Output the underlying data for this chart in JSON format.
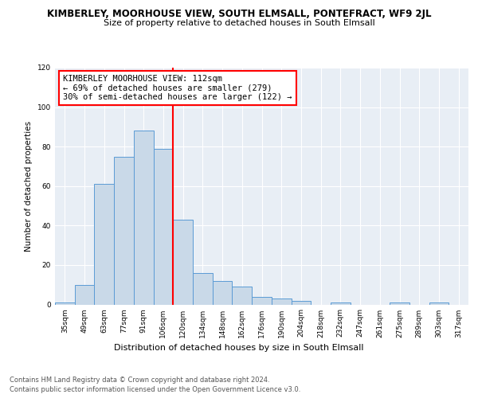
{
  "title1": "KIMBERLEY, MOORHOUSE VIEW, SOUTH ELMSALL, PONTEFRACT, WF9 2JL",
  "title2": "Size of property relative to detached houses in South Elmsall",
  "xlabel": "Distribution of detached houses by size in South Elmsall",
  "ylabel": "Number of detached properties",
  "bar_labels": [
    "35sqm",
    "49sqm",
    "63sqm",
    "77sqm",
    "91sqm",
    "106sqm",
    "120sqm",
    "134sqm",
    "148sqm",
    "162sqm",
    "176sqm",
    "190sqm",
    "204sqm",
    "218sqm",
    "232sqm",
    "247sqm",
    "261sqm",
    "275sqm",
    "289sqm",
    "303sqm",
    "317sqm"
  ],
  "bar_values": [
    1,
    10,
    61,
    75,
    88,
    79,
    43,
    16,
    12,
    9,
    4,
    3,
    2,
    0,
    1,
    0,
    0,
    1,
    0,
    1,
    0
  ],
  "bar_color": "#c9d9e8",
  "bar_edge_color": "#5b9bd5",
  "vline_color": "red",
  "annotation_title": "KIMBERLEY MOORHOUSE VIEW: 112sqm",
  "annotation_line1": "← 69% of detached houses are smaller (279)",
  "annotation_line2": "30% of semi-detached houses are larger (122) →",
  "annotation_box_color": "white",
  "annotation_box_edge_color": "red",
  "ylim": [
    0,
    120
  ],
  "yticks": [
    0,
    20,
    40,
    60,
    80,
    100,
    120
  ],
  "footer1": "Contains HM Land Registry data © Crown copyright and database right 2024.",
  "footer2": "Contains public sector information licensed under the Open Government Licence v3.0.",
  "bg_color": "#e8eef5",
  "fig_bg_color": "#ffffff",
  "grid_color": "#ffffff",
  "title1_fontsize": 8.5,
  "title2_fontsize": 8.0,
  "xlabel_fontsize": 8.0,
  "ylabel_fontsize": 7.5,
  "tick_fontsize": 6.5,
  "footer_fontsize": 6.0,
  "ann_fontsize": 7.5
}
